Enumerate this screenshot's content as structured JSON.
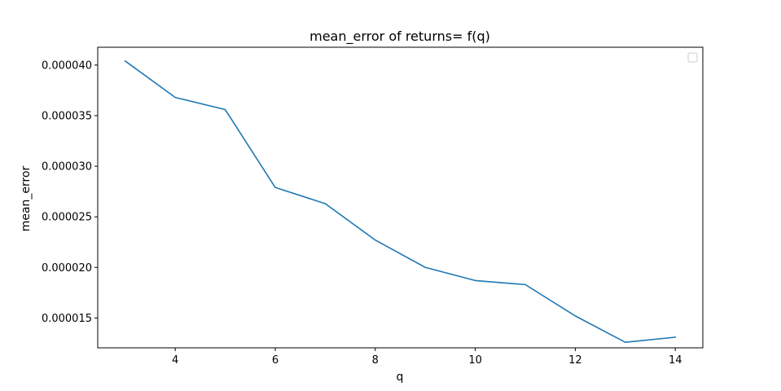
{
  "chart_data": {
    "type": "line",
    "title": "mean_error of returns= f(q)",
    "xlabel": "q",
    "ylabel": "mean_error",
    "xlim": [
      2.45,
      14.55
    ],
    "ylim": [
      1.205e-05,
      4.176e-05
    ],
    "xticks": [
      4,
      6,
      8,
      10,
      12,
      14
    ],
    "yticks": [
      {
        "value": 1.5e-05,
        "label": "0.000015"
      },
      {
        "value": 2e-05,
        "label": "0.000020"
      },
      {
        "value": 2.5e-05,
        "label": "0.000025"
      },
      {
        "value": 3e-05,
        "label": "0.000030"
      },
      {
        "value": 3.5e-05,
        "label": "0.000035"
      },
      {
        "value": 4e-05,
        "label": "0.000040"
      }
    ],
    "grid": false,
    "legend": "top-right (empty)",
    "series": [
      {
        "color": "#1f77b4",
        "x": [
          3,
          4,
          5,
          6,
          7,
          8,
          9,
          10,
          11,
          12,
          13,
          14
        ],
        "y": [
          4.04e-05,
          3.68e-05,
          3.56e-05,
          2.79e-05,
          2.63e-05,
          2.27e-05,
          2e-05,
          1.87e-05,
          1.83e-05,
          1.52e-05,
          1.26e-05,
          1.31e-05
        ]
      }
    ]
  }
}
